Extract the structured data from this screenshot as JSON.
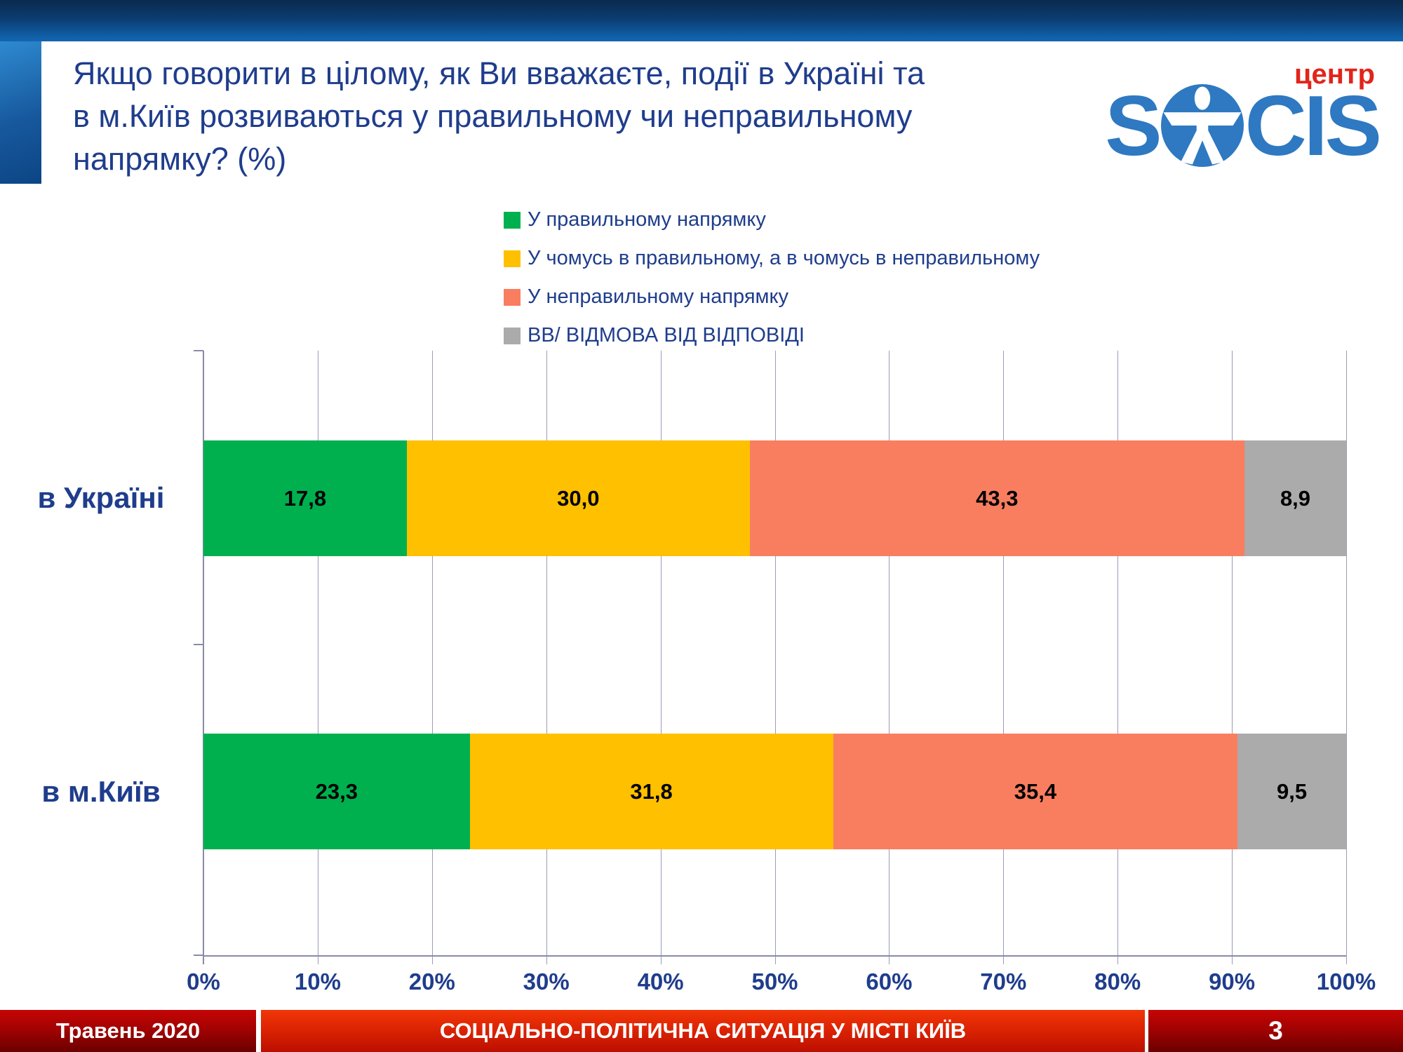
{
  "header": {
    "title_lines": [
      "Якщо говорити в цілому, як Ви вважаєте, події в Україні та",
      "в м.Київ розвиваються у правильному чи неправильному",
      "напрямку? (%)"
    ],
    "logo": {
      "prefix": "S",
      "suffix": "CIS",
      "tagline": "центр"
    }
  },
  "chart_data": {
    "type": "bar",
    "stacked": true,
    "orientation": "horizontal",
    "title": "Якщо говорити в цілому, як Ви вважаєте, події в Україні та в м.Київ розвиваються у правильному чи неправильному напрямку? (%)",
    "categories": [
      "в Україні",
      "в м.Київ"
    ],
    "series": [
      {
        "name": "У правильному напрямку",
        "color": "#00B04F",
        "values": [
          17.8,
          23.3
        ]
      },
      {
        "name": "У чомусь в правильному, а в чомусь в неправильному",
        "color": "#FFC000",
        "values": [
          30.0,
          31.8
        ]
      },
      {
        "name": "У неправильному напрямку",
        "color": "#F97E60",
        "values": [
          43.3,
          35.4
        ]
      },
      {
        "name": "ВВ/ ВІДМОВА ВІД ВІДПОВІДІ",
        "color": "#ABABAB",
        "values": [
          8.9,
          9.5
        ]
      }
    ],
    "xlim": [
      0,
      100
    ],
    "x_tick_labels": [
      "0%",
      "10%",
      "20%",
      "30%",
      "40%",
      "50%",
      "60%",
      "70%",
      "80%",
      "90%",
      "100%"
    ],
    "grid": true,
    "legend_position": "top",
    "value_label_format": "comma-decimal"
  },
  "footer": {
    "date": "Травень 2020",
    "title": "СОЦІАЛЬНО-ПОЛІТИЧНА СИТУАЦІЯ У МІСТІ КИЇВ",
    "page": "3"
  },
  "colors": {
    "title_text": "#1F3D8C",
    "axis_text": "#1F3D8C",
    "gridline": "#9B9BBA",
    "logo_blue": "#2E79C1",
    "logo_red": "#E1251B"
  }
}
